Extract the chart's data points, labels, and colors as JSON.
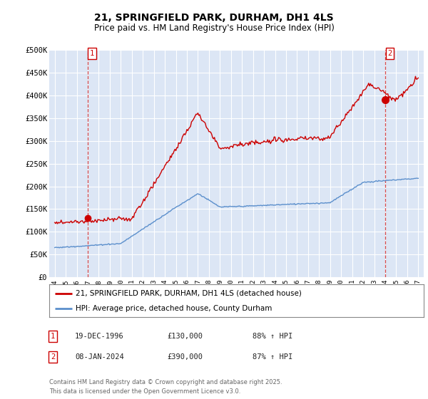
{
  "title": "21, SPRINGFIELD PARK, DURHAM, DH1 4LS",
  "subtitle": "Price paid vs. HM Land Registry's House Price Index (HPI)",
  "ylim": [
    0,
    500000
  ],
  "yticks": [
    0,
    50000,
    100000,
    150000,
    200000,
    250000,
    300000,
    350000,
    400000,
    450000,
    500000
  ],
  "ytick_labels": [
    "£0",
    "£50K",
    "£100K",
    "£150K",
    "£200K",
    "£250K",
    "£300K",
    "£350K",
    "£400K",
    "£450K",
    "£500K"
  ],
  "xlim_start": 1993.5,
  "xlim_end": 2027.5,
  "background_color": "#ffffff",
  "plot_bg_color": "#dce6f5",
  "grid_color": "#ffffff",
  "red_color": "#cc0000",
  "blue_color": "#5b8fcc",
  "marker1_x": 1996.97,
  "marker1_y": 130000,
  "marker2_x": 2024.03,
  "marker2_y": 390000,
  "legend_label_red": "21, SPRINGFIELD PARK, DURHAM, DH1 4LS (detached house)",
  "legend_label_blue": "HPI: Average price, detached house, County Durham",
  "note1_num": "1",
  "note1_date": "19-DEC-1996",
  "note1_price": "£130,000",
  "note1_hpi": "88% ↑ HPI",
  "note2_num": "2",
  "note2_date": "08-JAN-2024",
  "note2_price": "£390,000",
  "note2_hpi": "87% ↑ HPI",
  "footer": "Contains HM Land Registry data © Crown copyright and database right 2025.\nThis data is licensed under the Open Government Licence v3.0."
}
